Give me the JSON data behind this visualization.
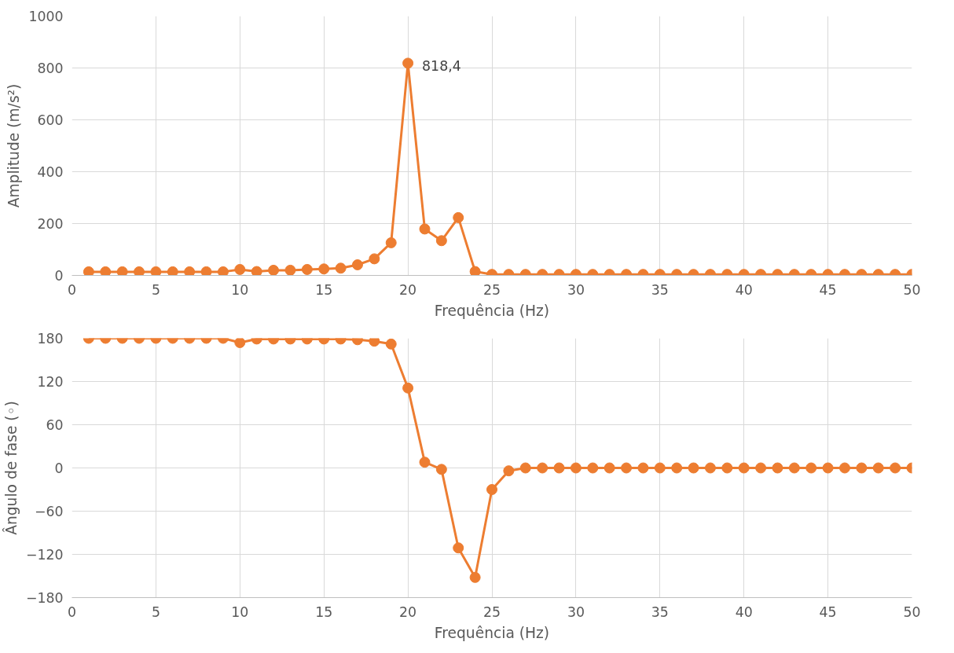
{
  "chart_data": [
    {
      "type": "line",
      "xlabel": "Frequência (Hz)",
      "ylabel": "Amplitude (m/s²)",
      "x": [
        1,
        2,
        3,
        4,
        5,
        6,
        7,
        8,
        9,
        10,
        11,
        12,
        13,
        14,
        15,
        16,
        17,
        18,
        19,
        20,
        21,
        22,
        23,
        24,
        25,
        26,
        27,
        28,
        29,
        30,
        31,
        32,
        33,
        34,
        35,
        36,
        37,
        38,
        39,
        40,
        41,
        42,
        43,
        44,
        45,
        46,
        47,
        48,
        49,
        50
      ],
      "series": [
        {
          "color": "#ed7d31",
          "values": [
            14,
            14,
            14,
            14,
            14,
            14,
            14,
            14,
            14,
            23,
            15,
            20,
            20,
            23,
            25,
            28,
            41,
            64,
            126,
            818.4,
            179,
            134,
            223,
            15,
            4,
            4,
            4,
            4,
            4,
            4,
            4,
            4,
            4,
            4,
            4,
            4,
            4,
            4,
            4,
            4,
            4,
            4,
            4,
            4,
            4,
            4,
            4,
            4,
            4,
            4
          ]
        }
      ],
      "annotations": [
        {
          "text": "818,4",
          "x": 20,
          "y": 818.4
        }
      ],
      "xlim": [
        0,
        50
      ],
      "xticks": [
        0,
        5,
        10,
        15,
        20,
        25,
        30,
        35,
        40,
        45,
        50
      ],
      "ylim": [
        0,
        1000
      ],
      "yticks": [
        0,
        200,
        400,
        600,
        800,
        1000
      ],
      "grid": true,
      "marker": "circle",
      "line_style": "solid"
    },
    {
      "type": "line",
      "xlabel": "Frequência (Hz)",
      "ylabel": "Ângulo de fase (◦)",
      "x": [
        1,
        2,
        3,
        4,
        5,
        6,
        7,
        8,
        9,
        10,
        11,
        12,
        13,
        14,
        15,
        16,
        17,
        18,
        19,
        20,
        21,
        22,
        23,
        24,
        25,
        26,
        27,
        28,
        29,
        30,
        31,
        32,
        33,
        34,
        35,
        36,
        37,
        38,
        39,
        40,
        41,
        42,
        43,
        44,
        45,
        46,
        47,
        48,
        49,
        50
      ],
      "series": [
        {
          "color": "#ed7d31",
          "values": [
            180,
            180,
            180,
            180,
            180,
            180,
            180,
            180,
            180,
            174,
            179,
            179,
            179,
            179,
            179,
            179,
            178,
            176,
            172,
            111,
            8,
            -2,
            -111,
            -152,
            -30,
            -4,
            0,
            0,
            0,
            0,
            0,
            0,
            0,
            0,
            0,
            0,
            0,
            0,
            0,
            0,
            0,
            0,
            0,
            0,
            0,
            0,
            0,
            0,
            0,
            0
          ]
        }
      ],
      "xlim": [
        0,
        50
      ],
      "xticks": [
        0,
        5,
        10,
        15,
        20,
        25,
        30,
        35,
        40,
        45,
        50
      ],
      "ylim": [
        -180,
        180
      ],
      "yticks": [
        -180,
        -120,
        -60,
        0,
        60,
        120,
        180
      ],
      "grid": true,
      "marker": "circle",
      "line_style": "solid"
    }
  ]
}
